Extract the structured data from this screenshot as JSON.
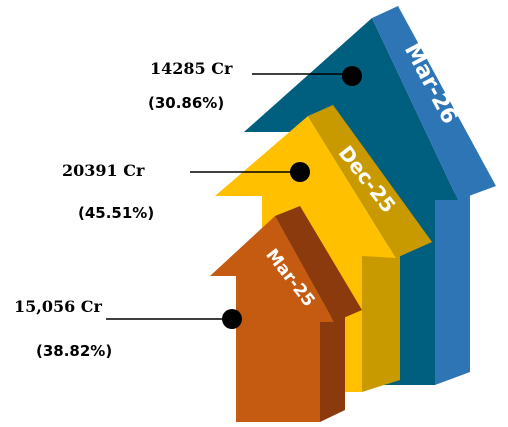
{
  "items": [
    {
      "period": "Mar-26",
      "value": "14285 Cr",
      "share": "(30.86%)"
    },
    {
      "period": "Dec-25",
      "value": "20391 Cr",
      "share": "(45.51%)"
    },
    {
      "period": "Mar-25",
      "value": "15,056 Cr",
      "share": "(38.82%)"
    }
  ]
}
